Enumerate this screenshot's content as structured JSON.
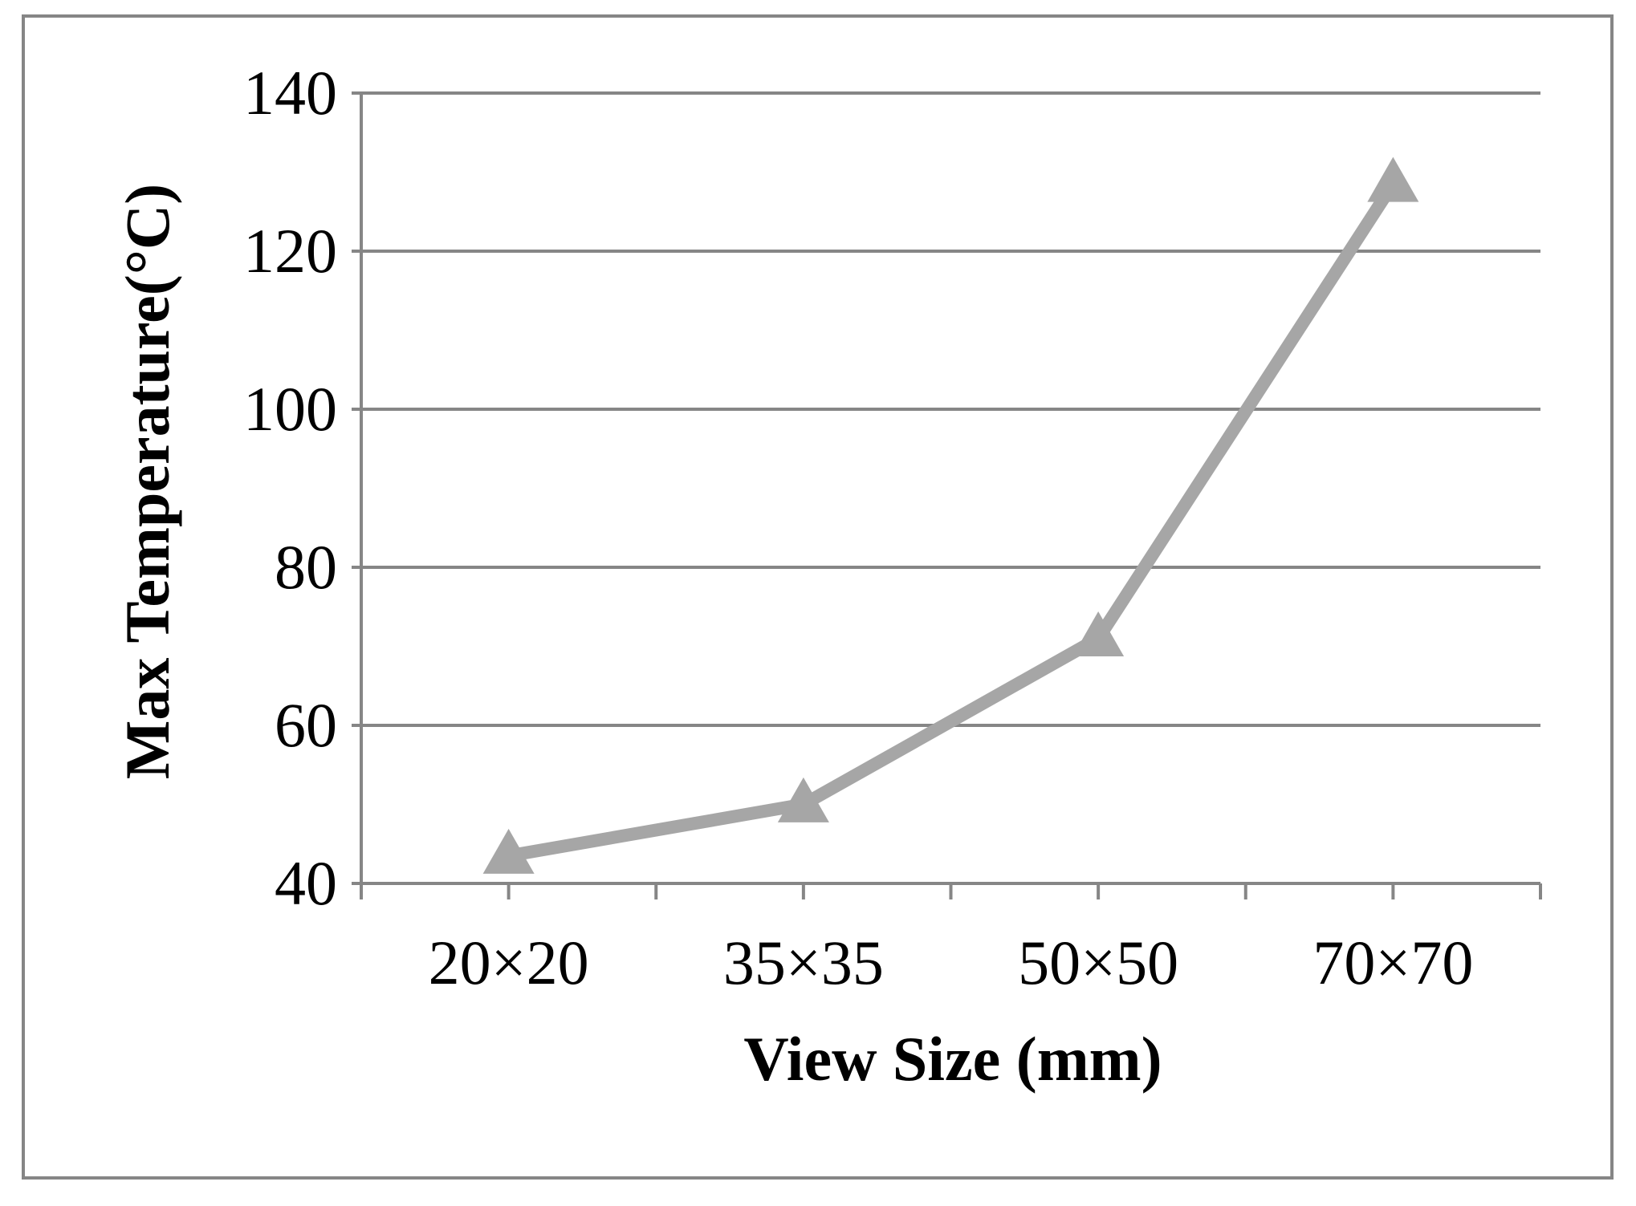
{
  "chart_data": {
    "type": "line",
    "title": "",
    "xlabel": "View Size (mm)",
    "ylabel": "Max Temperature(°C)",
    "categories": [
      "20×20",
      "35×35",
      "50×50",
      "70×70"
    ],
    "ylim": [
      40,
      140
    ],
    "yticks": [
      40,
      60,
      80,
      100,
      120,
      140
    ],
    "grid": true,
    "legend": "none",
    "series": [
      {
        "values": [
          43.5,
          50,
          71,
          128.5
        ],
        "color": "#a6a6a6",
        "marker": "triangle"
      }
    ],
    "colors": {
      "axis": "#868686",
      "text": "#000000"
    }
  }
}
